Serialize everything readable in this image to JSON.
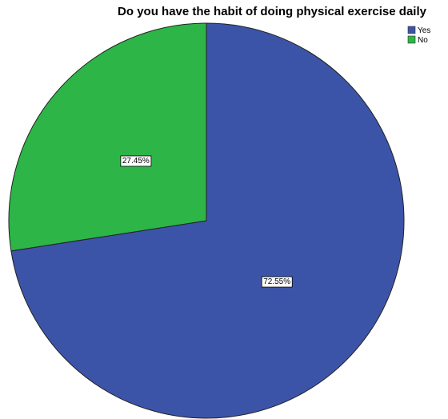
{
  "chart_data": {
    "type": "pie",
    "title": "Do you have the habit of doing physical exercise daily",
    "slices": [
      {
        "label": "Yes",
        "value": 72.55,
        "display": "72.55%",
        "color": "#3c54a8"
      },
      {
        "label": "No",
        "value": 27.45,
        "display": "27.45%",
        "color": "#2db548"
      }
    ],
    "legend": {
      "position": "top-right",
      "entries": [
        "Yes",
        "No"
      ]
    },
    "start_angle": "12 o'clock",
    "direction": "clockwise"
  }
}
